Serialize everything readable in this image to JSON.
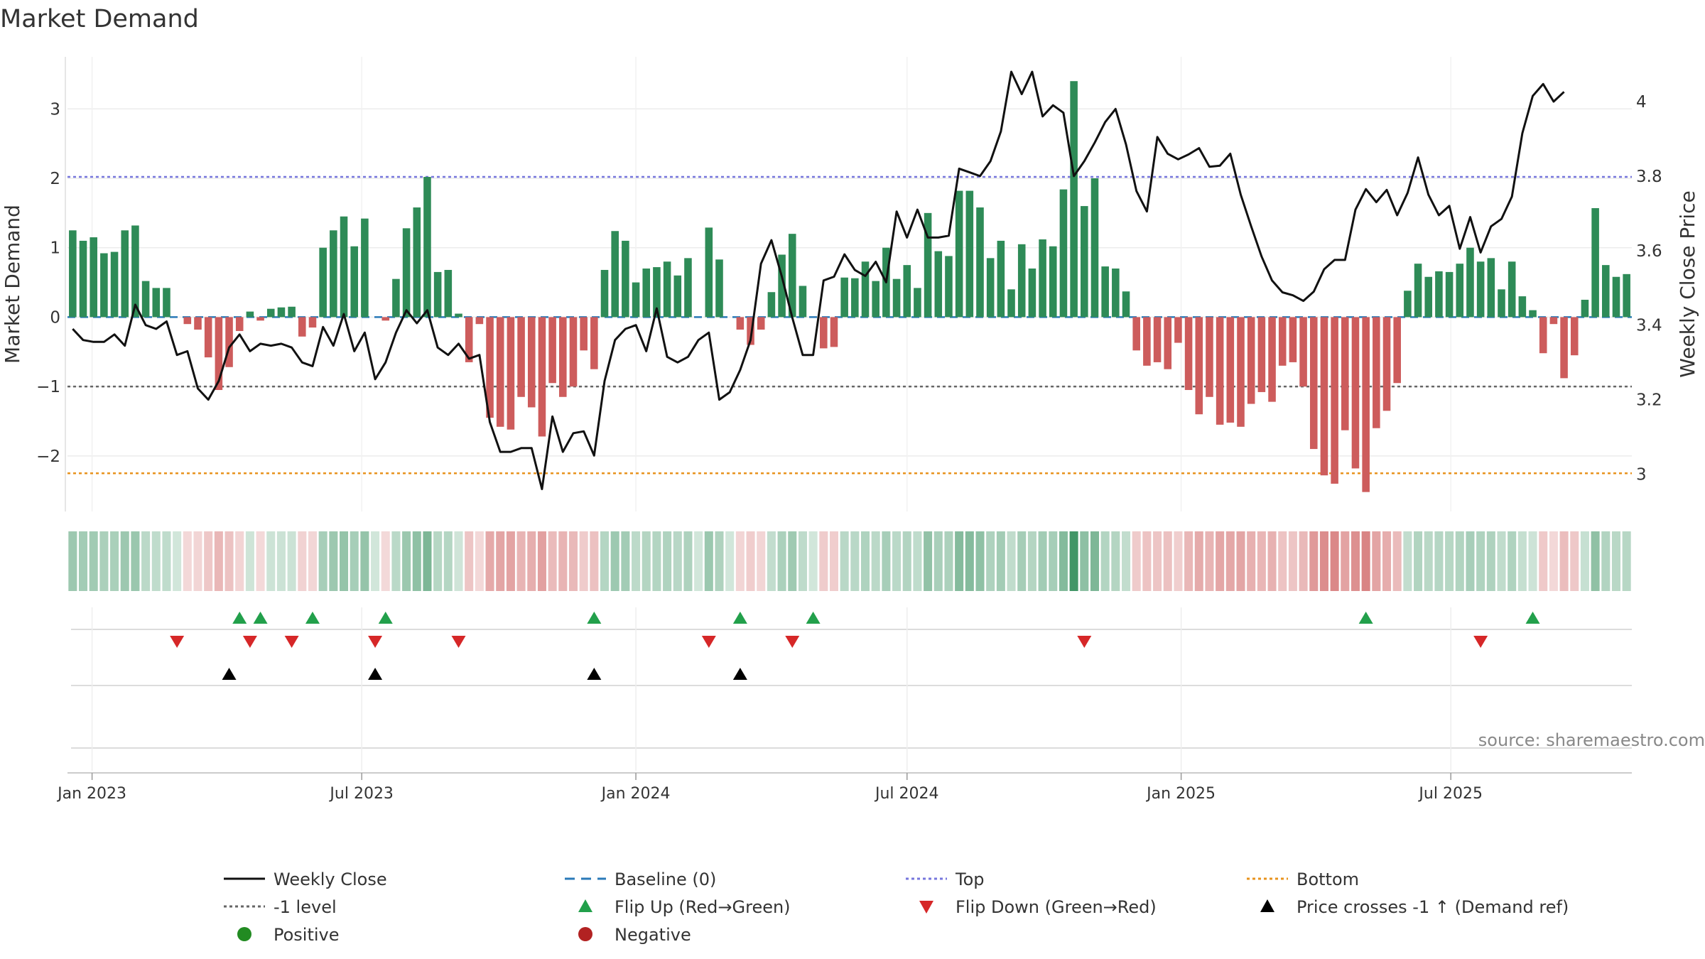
{
  "title": "Market Demand",
  "source": "source: sharemaestro.com",
  "colors": {
    "positive": "#2e8b57",
    "negative": "#cd5c5c",
    "top": "#7777dd",
    "bottom": "#e8931e",
    "level": "#666666",
    "baseline": "#2a7ab8",
    "price": "#111111",
    "flip_up": "#22a04b",
    "flip_down": "#d62728",
    "cross": "#000000",
    "pos_dot": "#228b22",
    "neg_dot": "#b22222"
  },
  "chart_data": {
    "type": "bar+line",
    "title": "Market Demand",
    "ylabel_left": "Market Demand",
    "ylabel_right": "Weekly Close Price",
    "x_start": "2022-12-19",
    "week_step_days": 7,
    "left_axis": {
      "ylim": [
        -2.8,
        3.75
      ],
      "ticks": [
        -2,
        -1,
        0,
        1,
        2,
        3
      ]
    },
    "right_axis": {
      "ylim": [
        2.9,
        4.12
      ],
      "ticks": [
        3,
        3.2,
        3.4,
        3.6,
        3.8,
        4
      ]
    },
    "x_ticks": [
      {
        "label": "Jan 2023",
        "date": "2023-01-01"
      },
      {
        "label": "Jul 2023",
        "date": "2023-07-01"
      },
      {
        "label": "Jan 2024",
        "date": "2024-01-01"
      },
      {
        "label": "Jul 2024",
        "date": "2024-07-01"
      },
      {
        "label": "Jan 2025",
        "date": "2025-01-01"
      },
      {
        "label": "Jul 2025",
        "date": "2025-07-01"
      }
    ],
    "levels": {
      "top": 2.02,
      "minus_one": -1.0,
      "bottom": -2.25,
      "baseline": 0
    },
    "demand": [
      1.25,
      1.1,
      1.15,
      0.92,
      0.94,
      1.25,
      1.32,
      0.52,
      0.42,
      0.42,
      0.0,
      -0.1,
      -0.18,
      -0.58,
      -1.05,
      -0.72,
      -0.2,
      0.08,
      -0.05,
      0.12,
      0.14,
      0.15,
      -0.28,
      -0.15,
      1.0,
      1.25,
      1.45,
      1.02,
      1.42,
      0.0,
      -0.05,
      0.55,
      1.28,
      1.58,
      2.02,
      0.65,
      0.68,
      0.05,
      -0.65,
      -0.1,
      -1.45,
      -1.58,
      -1.62,
      -1.15,
      -1.3,
      -1.72,
      -0.95,
      -1.15,
      -1.0,
      -0.48,
      -0.75,
      0.68,
      1.24,
      1.1,
      0.5,
      0.7,
      0.72,
      0.8,
      0.6,
      0.85,
      0.0,
      1.29,
      0.83,
      0.0,
      -0.18,
      -0.4,
      -0.18,
      0.36,
      0.9,
      1.2,
      0.45,
      0.0,
      -0.45,
      -0.43,
      0.57,
      0.56,
      0.8,
      0.52,
      1.0,
      0.55,
      0.75,
      0.42,
      1.5,
      0.95,
      0.88,
      1.82,
      1.82,
      1.58,
      0.85,
      1.1,
      0.4,
      1.05,
      0.7,
      1.12,
      1.02,
      1.84,
      3.4,
      1.6,
      2.0,
      0.73,
      0.7,
      0.37,
      -0.48,
      -0.7,
      -0.65,
      -0.75,
      -0.37,
      -1.05,
      -1.4,
      -1.15,
      -1.55,
      -1.52,
      -1.58,
      -1.25,
      -1.08,
      -1.22,
      -0.7,
      -0.65,
      -1.0,
      -1.9,
      -2.28,
      -2.4,
      -1.63,
      -2.18,
      -2.52,
      -1.6,
      -1.35,
      -0.95,
      0.38,
      0.77,
      0.58,
      0.66,
      0.65,
      0.77,
      1.0,
      0.8,
      0.85,
      0.4,
      0.8,
      0.3,
      0.1,
      -0.52,
      -0.1,
      -0.88,
      -0.55,
      0.25,
      1.57,
      0.75,
      0.58,
      0.62
    ],
    "weekly_close": [
      3.39,
      3.36,
      3.355,
      3.355,
      3.375,
      3.345,
      3.455,
      3.4,
      3.39,
      3.41,
      3.32,
      3.33,
      3.23,
      3.2,
      3.25,
      3.34,
      3.375,
      3.33,
      3.35,
      3.345,
      3.35,
      3.34,
      3.3,
      3.29,
      3.395,
      3.345,
      3.43,
      3.33,
      3.38,
      3.255,
      3.3,
      3.38,
      3.44,
      3.405,
      3.44,
      3.34,
      3.32,
      3.35,
      3.31,
      3.32,
      3.14,
      3.06,
      3.06,
      3.07,
      3.07,
      2.96,
      3.155,
      3.06,
      3.11,
      3.115,
      3.05,
      3.25,
      3.36,
      3.39,
      3.4,
      3.33,
      3.445,
      3.315,
      3.3,
      3.315,
      3.36,
      3.38,
      3.2,
      3.22,
      3.28,
      3.36,
      3.565,
      3.628,
      3.53,
      3.42,
      3.32,
      3.32,
      3.52,
      3.53,
      3.59,
      3.548,
      3.532,
      3.57,
      3.515,
      3.705,
      3.635,
      3.71,
      3.635,
      3.635,
      3.64,
      3.82,
      3.81,
      3.8,
      3.84,
      3.92,
      4.08,
      4.02,
      4.08,
      3.96,
      3.99,
      3.97,
      3.8,
      3.84,
      3.89,
      3.945,
      3.98,
      3.885,
      3.76,
      3.705,
      3.905,
      3.86,
      3.845,
      3.858,
      3.875,
      3.825,
      3.828,
      3.86,
      3.75,
      3.665,
      3.584,
      3.52,
      3.488,
      3.48,
      3.465,
      3.49,
      3.55,
      3.575,
      3.575,
      3.71,
      3.765,
      3.73,
      3.763,
      3.695,
      3.755,
      3.85,
      3.75,
      3.695,
      3.72,
      3.605,
      3.69,
      3.595,
      3.665,
      3.685,
      3.745,
      3.915,
      4.015,
      4.047,
      4.0,
      4.026
    ]
  },
  "flip_up_weeks": [
    16,
    18,
    23,
    30,
    50,
    64,
    71,
    124,
    140
  ],
  "flip_down_weeks": [
    10,
    17,
    21,
    29,
    37,
    61,
    69,
    97,
    135
  ],
  "cross_weeks": [
    15,
    29,
    50,
    64
  ],
  "legend": [
    {
      "label": "Weekly Close",
      "kind": "line",
      "color": "#111111"
    },
    {
      "label": "Baseline (0)",
      "kind": "dash",
      "color": "#2a7ab8"
    },
    {
      "label": "Top",
      "kind": "dot",
      "color": "#7777dd"
    },
    {
      "label": "Bottom",
      "kind": "dot",
      "color": "#e8931e"
    },
    {
      "label": "-1 level",
      "kind": "dot",
      "color": "#666666"
    },
    {
      "label": "Flip Up (Red→Green)",
      "kind": "tri-up",
      "color": "#22a04b"
    },
    {
      "label": "Flip Down (Green→Red)",
      "kind": "tri-down",
      "color": "#d62728"
    },
    {
      "label": "Price crosses -1 ↑ (Demand ref)",
      "kind": "tri-up",
      "color": "#000000"
    },
    {
      "label": "Positive",
      "kind": "circle",
      "color": "#228b22"
    },
    {
      "label": "Negative",
      "kind": "circle",
      "color": "#b22222"
    }
  ]
}
